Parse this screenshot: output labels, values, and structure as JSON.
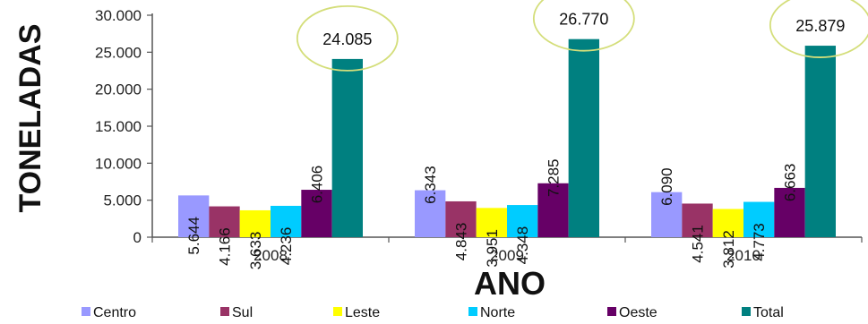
{
  "chart_data": {
    "type": "bar",
    "xlabel": "ANO",
    "ylabel": "TONELADAS",
    "ylim": [
      0,
      30000
    ],
    "yticks": [
      "0",
      "5.000",
      "10.000",
      "15.000",
      "20.000",
      "25.000",
      "30.000"
    ],
    "ytick_values": [
      0,
      5000,
      10000,
      15000,
      20000,
      25000,
      30000
    ],
    "categories": [
      "2008",
      "2009",
      "2010"
    ],
    "grid": false,
    "legend_position": "bottom",
    "series": [
      {
        "name": "Centro",
        "color": "#9999FF",
        "values": [
          5644,
          6343,
          6090
        ],
        "labels": [
          "5.644",
          "6.343",
          "6.090"
        ]
      },
      {
        "name": "Sul",
        "color": "#993366",
        "values": [
          4166,
          4843,
          4541
        ],
        "labels": [
          "4.166",
          "4.843",
          "4.541"
        ]
      },
      {
        "name": "Leste",
        "color": "#FFFF00",
        "values": [
          3633,
          3951,
          3812
        ],
        "labels": [
          "3.633",
          "3.951",
          "3.812"
        ]
      },
      {
        "name": "Norte",
        "color": "#00CCFF",
        "values": [
          4236,
          4348,
          4773
        ],
        "labels": [
          "4.236",
          "4.348",
          "4.773"
        ]
      },
      {
        "name": "Oeste",
        "color": "#660066",
        "values": [
          6406,
          7285,
          6663
        ],
        "labels": [
          "6.406",
          "7.285",
          "6.663"
        ]
      },
      {
        "name": "Total",
        "color": "#008080",
        "values": [
          24085,
          26770,
          25879
        ],
        "labels": [
          "24.085",
          "26.770",
          "25.879"
        ]
      }
    ],
    "annotation_color": "#D4DE7A"
  }
}
